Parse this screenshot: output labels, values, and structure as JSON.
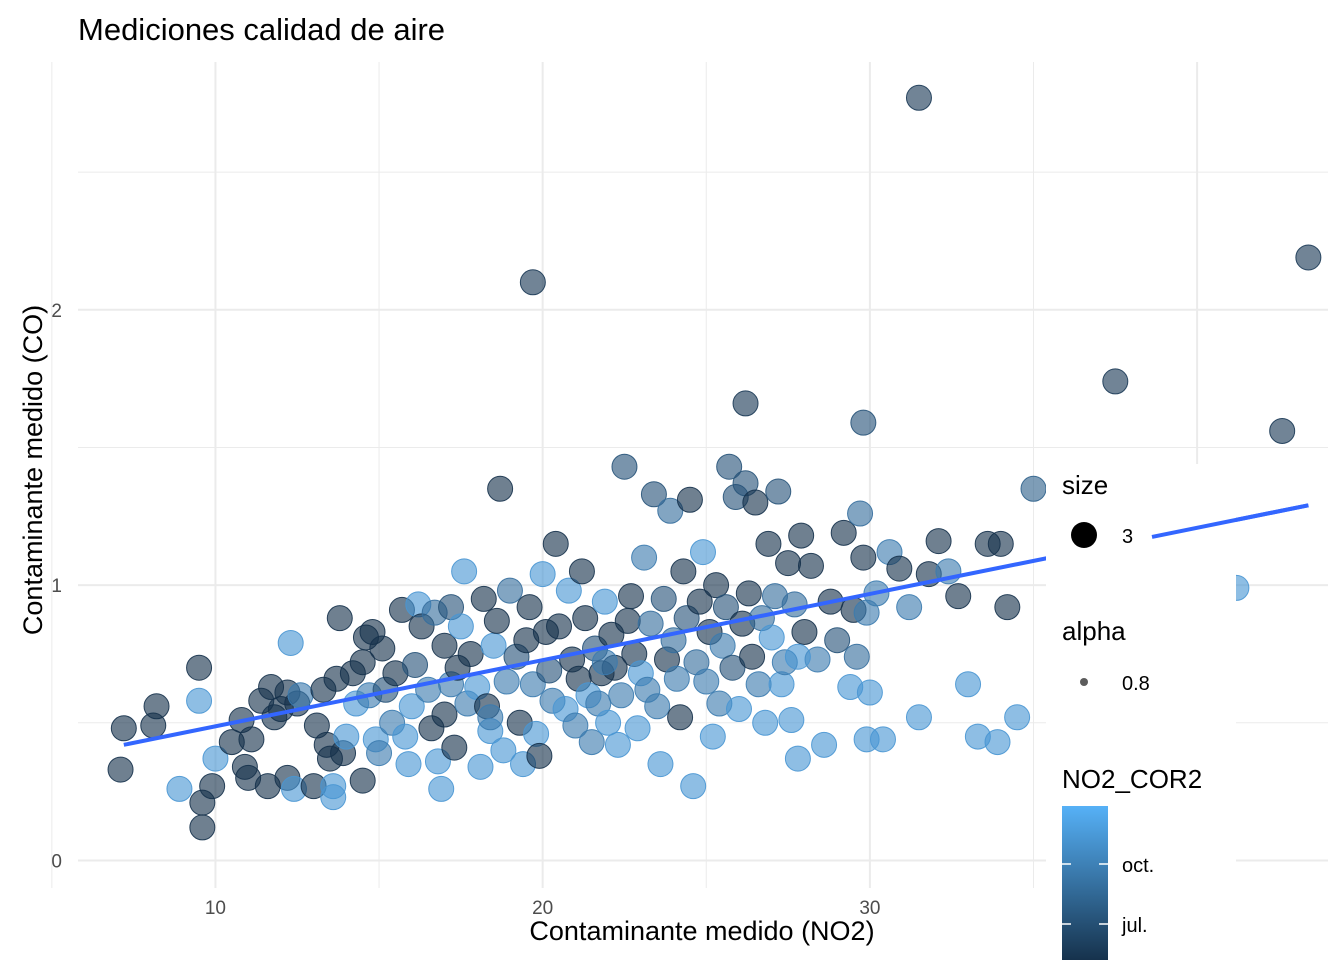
{
  "chart_data": {
    "type": "scatter",
    "title": "Mediciones calidad de aire",
    "xlabel": "Contaminante medido (NO2)",
    "ylabel": "Contaminante medido (CO)",
    "xlim": [
      5.8,
      44.0
    ],
    "ylim": [
      -0.1,
      2.9
    ],
    "xticks": [
      10,
      20,
      30
    ],
    "yticks": [
      0,
      1,
      2
    ],
    "grid": true,
    "legend": {
      "size": {
        "title": "size",
        "label": "3"
      },
      "alpha": {
        "title": "alpha",
        "label": "0.8"
      },
      "color": {
        "title": "NO2_COR2",
        "labels": [
          "oct.",
          "jul."
        ]
      }
    },
    "colors": {
      "light": "#56B1F7",
      "dark": "#132B43",
      "line": "#3366FF",
      "grid": "#EBEBEB"
    },
    "trend_line": {
      "x": [
        7.2,
        43.4
      ],
      "y": [
        0.42,
        1.29
      ]
    },
    "points": [
      [
        31.5,
        2.77,
        0.1
      ],
      [
        43.4,
        2.19,
        0.1
      ],
      [
        19.7,
        2.1,
        0.1
      ],
      [
        37.5,
        1.74,
        0.1
      ],
      [
        42.6,
        1.56,
        0.1
      ],
      [
        26.2,
        1.66,
        0.1
      ],
      [
        29.8,
        1.59,
        0.3
      ],
      [
        35.0,
        1.35,
        0.4
      ],
      [
        7.2,
        0.48,
        0.05
      ],
      [
        7.1,
        0.33,
        0.05
      ],
      [
        8.1,
        0.49,
        0.05
      ],
      [
        8.2,
        0.56,
        0.05
      ],
      [
        8.9,
        0.26,
        0.8
      ],
      [
        9.5,
        0.7,
        0.05
      ],
      [
        9.5,
        0.58,
        0.8
      ],
      [
        9.6,
        0.21,
        0.05
      ],
      [
        9.6,
        0.12,
        0.05
      ],
      [
        9.9,
        0.27,
        0.05
      ],
      [
        10.0,
        0.37,
        0.8
      ],
      [
        10.5,
        0.43,
        0.05
      ],
      [
        10.8,
        0.51,
        0.05
      ],
      [
        10.9,
        0.34,
        0.05
      ],
      [
        11.0,
        0.3,
        0.05
      ],
      [
        11.1,
        0.44,
        0.05
      ],
      [
        11.4,
        0.58,
        0.05
      ],
      [
        11.6,
        0.27,
        0.05
      ],
      [
        11.7,
        0.63,
        0.05
      ],
      [
        11.8,
        0.52,
        0.05
      ],
      [
        12.0,
        0.55,
        0.05
      ],
      [
        12.2,
        0.61,
        0.05
      ],
      [
        12.2,
        0.3,
        0.05
      ],
      [
        12.3,
        0.79,
        0.8
      ],
      [
        12.4,
        0.26,
        0.8
      ],
      [
        12.5,
        0.57,
        0.05
      ],
      [
        12.6,
        0.6,
        0.6
      ],
      [
        13.0,
        0.27,
        0.05
      ],
      [
        13.1,
        0.49,
        0.05
      ],
      [
        13.3,
        0.62,
        0.05
      ],
      [
        13.4,
        0.42,
        0.05
      ],
      [
        13.5,
        0.37,
        0.05
      ],
      [
        13.6,
        0.27,
        0.8
      ],
      [
        13.6,
        0.23,
        0.8
      ],
      [
        13.7,
        0.66,
        0.05
      ],
      [
        13.8,
        0.88,
        0.05
      ],
      [
        13.9,
        0.39,
        0.05
      ],
      [
        14.0,
        0.45,
        0.8
      ],
      [
        14.2,
        0.68,
        0.05
      ],
      [
        14.3,
        0.57,
        0.8
      ],
      [
        14.5,
        0.29,
        0.05
      ],
      [
        14.5,
        0.72,
        0.05
      ],
      [
        14.6,
        0.81,
        0.05
      ],
      [
        14.7,
        0.6,
        0.6
      ],
      [
        14.8,
        0.83,
        0.05
      ],
      [
        14.9,
        0.44,
        0.8
      ],
      [
        15.0,
        0.39,
        0.6
      ],
      [
        15.1,
        0.77,
        0.05
      ],
      [
        15.2,
        0.62,
        0.3
      ],
      [
        15.4,
        0.5,
        0.6
      ],
      [
        15.5,
        0.68,
        0.05
      ],
      [
        15.7,
        0.91,
        0.05
      ],
      [
        15.8,
        0.45,
        0.8
      ],
      [
        15.9,
        0.35,
        0.8
      ],
      [
        16.0,
        0.56,
        0.8
      ],
      [
        16.1,
        0.71,
        0.3
      ],
      [
        16.2,
        0.93,
        0.8
      ],
      [
        16.3,
        0.85,
        0.05
      ],
      [
        16.5,
        0.62,
        0.6
      ],
      [
        16.6,
        0.48,
        0.05
      ],
      [
        16.7,
        0.9,
        0.5
      ],
      [
        16.8,
        0.36,
        0.8
      ],
      [
        16.9,
        0.26,
        0.8
      ],
      [
        17.0,
        0.53,
        0.05
      ],
      [
        17.0,
        0.78,
        0.05
      ],
      [
        17.2,
        0.64,
        0.6
      ],
      [
        17.2,
        0.92,
        0.3
      ],
      [
        17.3,
        0.41,
        0.05
      ],
      [
        17.4,
        0.7,
        0.05
      ],
      [
        17.5,
        0.85,
        0.8
      ],
      [
        17.6,
        1.05,
        0.8
      ],
      [
        17.7,
        0.57,
        0.6
      ],
      [
        17.8,
        0.75,
        0.05
      ],
      [
        18.0,
        0.63,
        0.8
      ],
      [
        18.1,
        0.34,
        0.8
      ],
      [
        18.2,
        0.95,
        0.05
      ],
      [
        18.3,
        0.56,
        0.05
      ],
      [
        18.4,
        0.47,
        0.8
      ],
      [
        18.5,
        0.78,
        0.8
      ],
      [
        18.6,
        0.87,
        0.05
      ],
      [
        18.7,
        1.35,
        0.05
      ],
      [
        18.8,
        0.4,
        0.8
      ],
      [
        18.9,
        0.65,
        0.6
      ],
      [
        19.0,
        0.98,
        0.5
      ],
      [
        19.2,
        0.74,
        0.3
      ],
      [
        19.3,
        0.5,
        0.05
      ],
      [
        19.4,
        0.35,
        0.8
      ],
      [
        19.5,
        0.8,
        0.05
      ],
      [
        19.6,
        0.92,
        0.05
      ],
      [
        19.7,
        0.64,
        0.6
      ],
      [
        19.8,
        0.46,
        0.8
      ],
      [
        19.9,
        0.38,
        0.05
      ],
      [
        20.0,
        1.04,
        0.8
      ],
      [
        20.1,
        0.83,
        0.05
      ],
      [
        20.2,
        0.69,
        0.3
      ],
      [
        20.3,
        0.58,
        0.6
      ],
      [
        20.4,
        1.15,
        0.05
      ],
      [
        20.5,
        0.85,
        0.05
      ],
      [
        20.7,
        0.55,
        0.8
      ],
      [
        20.8,
        0.98,
        0.8
      ],
      [
        20.9,
        0.73,
        0.05
      ],
      [
        21.0,
        0.49,
        0.6
      ],
      [
        21.1,
        0.66,
        0.05
      ],
      [
        21.2,
        1.05,
        0.05
      ],
      [
        21.3,
        0.88,
        0.05
      ],
      [
        21.4,
        0.6,
        0.8
      ],
      [
        21.5,
        0.43,
        0.6
      ],
      [
        21.6,
        0.77,
        0.3
      ],
      [
        21.7,
        0.57,
        0.6
      ],
      [
        21.8,
        0.68,
        0.05
      ],
      [
        21.9,
        0.94,
        0.8
      ],
      [
        22.0,
        0.5,
        0.8
      ],
      [
        22.1,
        0.82,
        0.05
      ],
      [
        22.2,
        0.7,
        0.05
      ],
      [
        22.3,
        0.42,
        0.8
      ],
      [
        22.4,
        0.6,
        0.6
      ],
      [
        22.5,
        1.43,
        0.3
      ],
      [
        22.6,
        0.87,
        0.05
      ],
      [
        22.7,
        0.96,
        0.05
      ],
      [
        22.8,
        0.75,
        0.05
      ],
      [
        22.9,
        0.48,
        0.8
      ],
      [
        23.0,
        0.68,
        0.8
      ],
      [
        23.1,
        1.1,
        0.6
      ],
      [
        23.2,
        0.62,
        0.6
      ],
      [
        23.3,
        0.86,
        0.5
      ],
      [
        23.4,
        1.33,
        0.3
      ],
      [
        23.5,
        0.56,
        0.6
      ],
      [
        23.6,
        0.35,
        0.8
      ],
      [
        23.7,
        0.95,
        0.3
      ],
      [
        23.8,
        0.73,
        0.05
      ],
      [
        23.9,
        1.27,
        0.5
      ],
      [
        24.0,
        0.8,
        0.5
      ],
      [
        24.1,
        0.66,
        0.6
      ],
      [
        24.2,
        0.52,
        0.05
      ],
      [
        24.3,
        1.05,
        0.05
      ],
      [
        24.4,
        0.88,
        0.3
      ],
      [
        24.5,
        1.31,
        0.05
      ],
      [
        24.6,
        0.27,
        0.8
      ],
      [
        24.7,
        0.72,
        0.5
      ],
      [
        24.8,
        0.94,
        0.05
      ],
      [
        24.9,
        1.12,
        0.8
      ],
      [
        25.0,
        0.65,
        0.6
      ],
      [
        25.1,
        0.83,
        0.05
      ],
      [
        25.2,
        0.45,
        0.8
      ],
      [
        25.3,
        1.0,
        0.05
      ],
      [
        25.4,
        0.57,
        0.6
      ],
      [
        25.5,
        0.78,
        0.6
      ],
      [
        25.6,
        0.92,
        0.3
      ],
      [
        25.7,
        1.43,
        0.3
      ],
      [
        25.8,
        0.7,
        0.3
      ],
      [
        25.9,
        1.32,
        0.3
      ],
      [
        26.0,
        0.55,
        0.8
      ],
      [
        26.1,
        0.86,
        0.05
      ],
      [
        26.2,
        1.37,
        0.3
      ],
      [
        26.3,
        0.97,
        0.05
      ],
      [
        26.4,
        0.74,
        0.05
      ],
      [
        26.5,
        1.3,
        0.05
      ],
      [
        26.6,
        0.64,
        0.6
      ],
      [
        26.7,
        0.88,
        0.5
      ],
      [
        26.8,
        0.5,
        0.8
      ],
      [
        26.9,
        1.15,
        0.05
      ],
      [
        27.0,
        0.81,
        0.8
      ],
      [
        27.1,
        0.96,
        0.5
      ],
      [
        27.2,
        1.34,
        0.3
      ],
      [
        27.3,
        0.64,
        0.8
      ],
      [
        27.4,
        0.72,
        0.6
      ],
      [
        27.5,
        1.08,
        0.05
      ],
      [
        27.6,
        0.51,
        0.8
      ],
      [
        27.7,
        0.93,
        0.5
      ],
      [
        27.8,
        0.37,
        0.8
      ],
      [
        27.9,
        1.18,
        0.05
      ],
      [
        28.0,
        0.83,
        0.05
      ],
      [
        28.2,
        1.07,
        0.05
      ],
      [
        28.4,
        0.73,
        0.6
      ],
      [
        28.6,
        0.42,
        0.8
      ],
      [
        28.8,
        0.94,
        0.05
      ],
      [
        29.0,
        0.8,
        0.3
      ],
      [
        29.2,
        1.19,
        0.05
      ],
      [
        29.4,
        0.63,
        0.8
      ],
      [
        29.5,
        0.91,
        0.05
      ],
      [
        29.6,
        0.74,
        0.5
      ],
      [
        29.7,
        1.26,
        0.5
      ],
      [
        29.8,
        1.1,
        0.05
      ],
      [
        29.9,
        0.44,
        0.8
      ],
      [
        30.0,
        0.61,
        0.8
      ],
      [
        30.2,
        0.97,
        0.6
      ],
      [
        30.4,
        0.44,
        0.8
      ],
      [
        30.6,
        1.12,
        0.6
      ],
      [
        30.9,
        1.06,
        0.05
      ],
      [
        31.2,
        0.92,
        0.6
      ],
      [
        31.5,
        0.52,
        0.8
      ],
      [
        31.8,
        1.04,
        0.05
      ],
      [
        32.1,
        1.16,
        0.05
      ],
      [
        32.4,
        1.05,
        0.6
      ],
      [
        32.7,
        0.96,
        0.05
      ],
      [
        33.0,
        0.64,
        0.8
      ],
      [
        33.3,
        0.45,
        0.8
      ],
      [
        33.6,
        1.15,
        0.05
      ],
      [
        33.9,
        0.43,
        0.8
      ],
      [
        34.2,
        0.92,
        0.05
      ],
      [
        34.5,
        0.52,
        0.8
      ],
      [
        36.5,
        0.65,
        0.8
      ],
      [
        41.2,
        0.99,
        0.8
      ],
      [
        34.0,
        1.15,
        0.05
      ],
      [
        27.8,
        0.74,
        0.8
      ],
      [
        29.9,
        0.9,
        0.6
      ],
      [
        18.4,
        0.52,
        0.6
      ],
      [
        21.9,
        0.72,
        0.6
      ]
    ]
  }
}
